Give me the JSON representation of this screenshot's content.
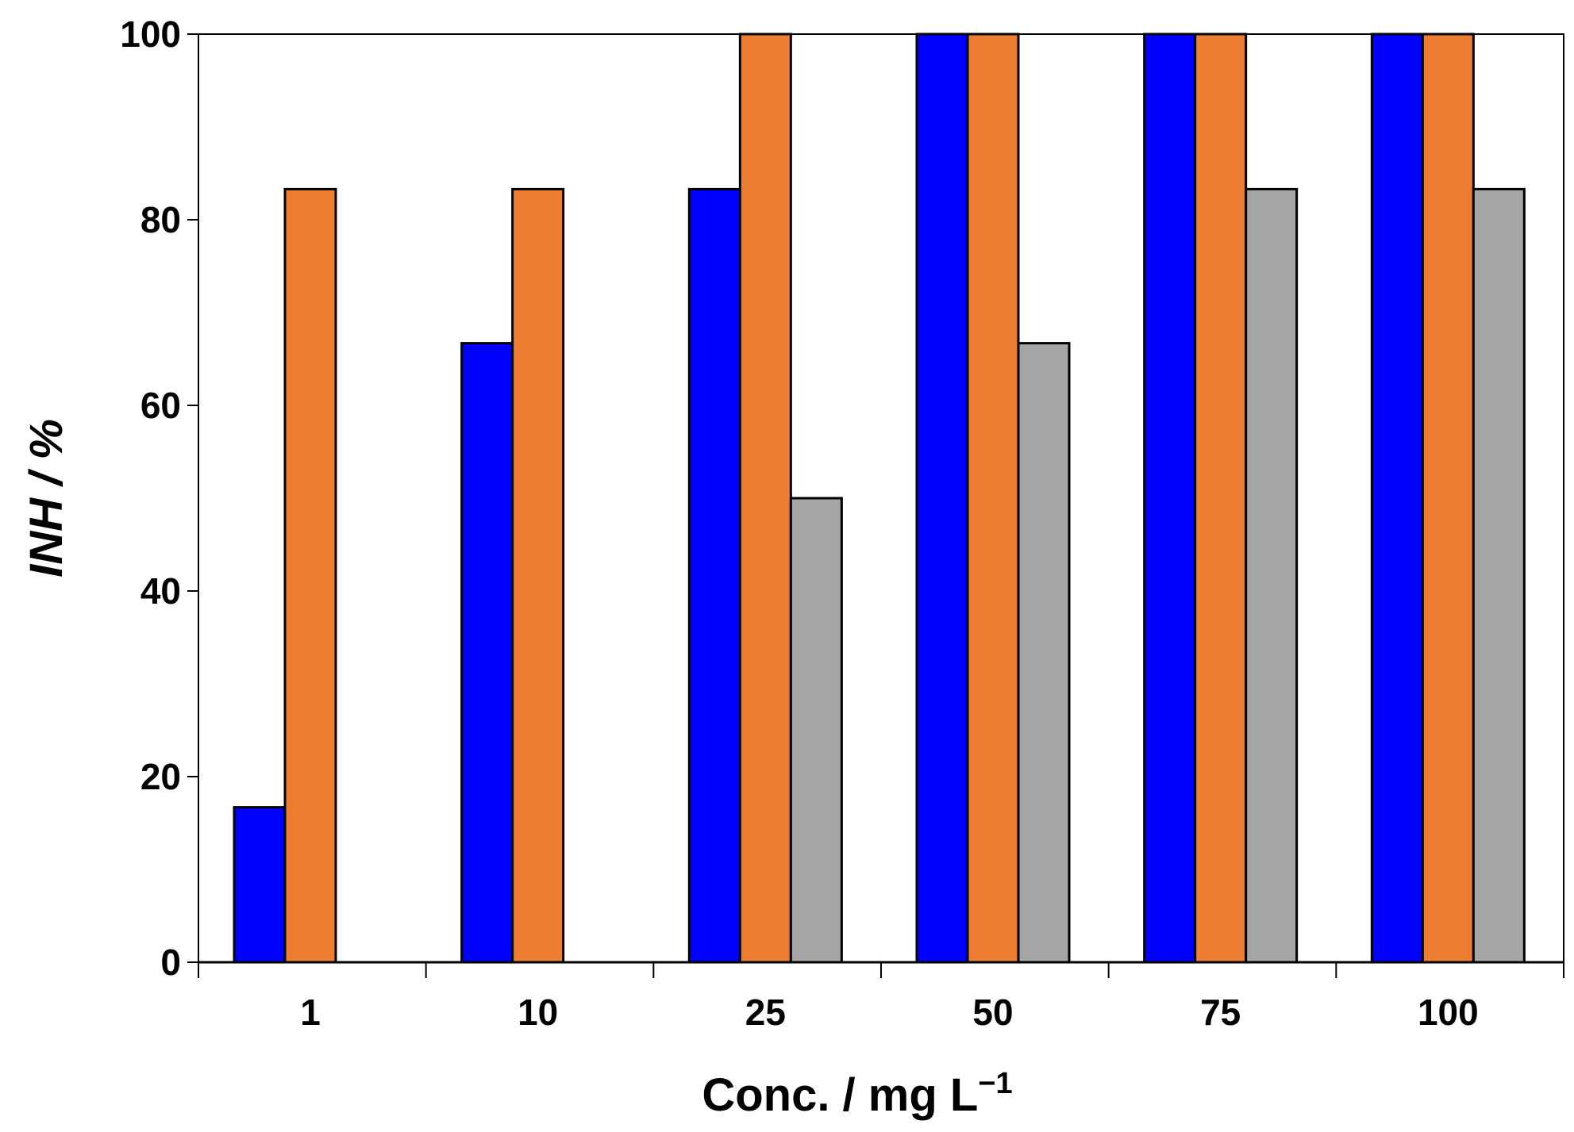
{
  "chart_data": {
    "type": "bar",
    "title": "",
    "xlabel": "Conc. / mg L",
    "xlabel_sup": "−1",
    "ylabel": "INH / %",
    "categories": [
      "1",
      "10",
      "25",
      "50",
      "75",
      "100"
    ],
    "ylim": [
      0,
      100
    ],
    "yticks": [
      "0",
      "20",
      "40",
      "60",
      "80",
      "100"
    ],
    "grid": false,
    "legend": "none",
    "series": [
      {
        "name": "series-1",
        "color": "#0000FF",
        "values": [
          16.7,
          66.7,
          83.3,
          100,
          100,
          100
        ]
      },
      {
        "name": "series-2",
        "color": "#ED7D31",
        "values": [
          83.3,
          83.3,
          100,
          100,
          100,
          100
        ]
      },
      {
        "name": "series-3",
        "color": "#A5A5A5",
        "values": [
          0,
          0,
          50,
          66.7,
          83.3,
          83.3
        ]
      }
    ]
  }
}
